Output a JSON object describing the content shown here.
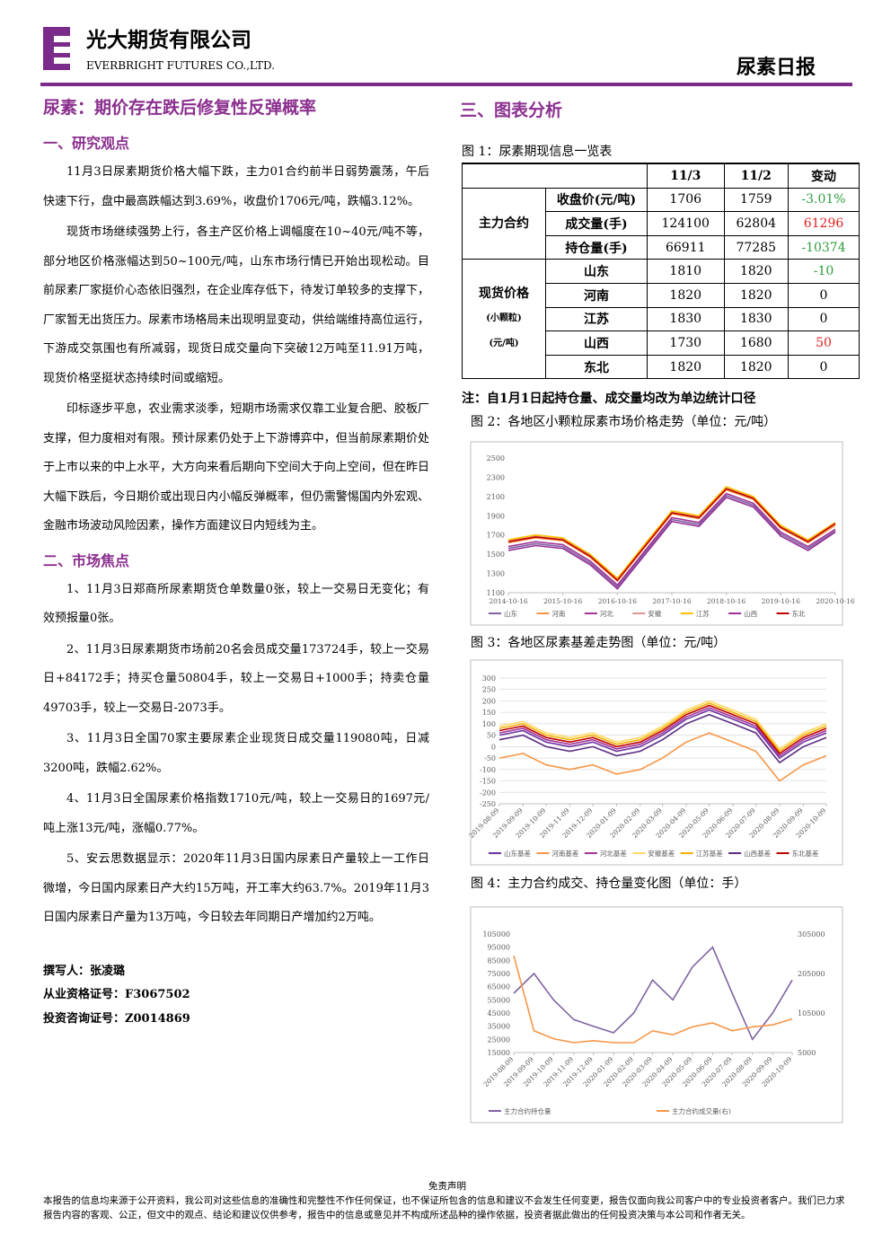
{
  "header": {
    "company_cn": "光大期货有限公司",
    "company_en": "EVERBRIGHT FUTURES CO.,LTD.",
    "report": "尿素日报"
  },
  "left": {
    "title": "尿素：期价存在跌后修复性反弹概率",
    "sections": [
      {
        "heading": "一、研究观点",
        "paragraphs": [
          "11月3日尿素期货价格大幅下跌，主力01合约前半日弱势震荡，午后快速下行，盘中最高跌幅达到3.69%，收盘价1706元/吨，跌幅3.12%。",
          "现货市场继续强势上行，各主产区价格上调幅度在10~40元/吨不等，部分地区价格涨幅达到50~100元/吨，山东市场行情已开始出现松动。目前尿素厂家挺价心态依旧强烈，在企业库存低下，待发订单较多的支撑下，厂家暂无出货压力。尿素市场格局未出现明显变动，供给端维持高位运行，下游成交氛围也有所减弱，现货日成交量向下突破12万吨至11.91万吨，现货价格坚挺状态持续时间或缩短。",
          "印标逐步平息，农业需求淡季，短期市场需求仅靠工业复合肥、胶板厂支撑，但力度相对有限。预计尿素仍处于上下游博弈中，但当前尿素期价处于上市以来的中上水平，大方向来看后期向下空间大于向上空间，但在昨日大幅下跌后，今日期价或出现日内小幅反弹概率，但仍需警惕国内外宏观、金融市场波动风险因素，操作方面建议日内短线为主。"
        ]
      },
      {
        "heading": "二、市场焦点",
        "paragraphs": [
          "1、11月3日郑商所尿素期货仓单数量0张，较上一交易日无变化；有效预报量0张。",
          "2、11月3日尿素期货市场前20名会员成交量173724手，较上一交易日+84172手；持买仓量50804手，较上一交易日+1000手；持卖仓量49703手，较上一交易日-2073手。",
          "3、11月3日全国70家主要尿素企业现货日成交量119080吨，日减3200吨，跌幅2.62%。",
          "4、11月3日全国尿素价格指数1710元/吨，较上一交易日的1697元/吨上涨13元/吨，涨幅0.77%。",
          "5、安云思数据显示：2020年11月3日国内尿素日产量较上一工作日微增，今日国内尿素日产大约15万吨，开工率大约63.7%。2019年11月3日国内尿素日产量为13万吨，今日较去年同期日产增加约2万吨。"
        ]
      }
    ],
    "authors": [
      "撰写人：张凌璐",
      "从业资格证号：F3067502",
      "投资咨询证号：Z0014869"
    ]
  },
  "right": {
    "heading": "三、图表分析",
    "table_caption": "图 1：尿素期现信息一览表",
    "table": {
      "columns": [
        "11/3",
        "11/2",
        "变动"
      ],
      "groups": [
        {
          "label": "主力合约",
          "rows": [
            {
              "label": "收盘价(元/吨)",
              "cells": [
                "1706",
                "1759",
                "-3.01%"
              ]
            },
            {
              "label": "成交量(手)",
              "cells": [
                "124100",
                "62804",
                "61296"
              ]
            },
            {
              "label": "持仓量(手)",
              "cells": [
                "66911",
                "77285",
                "-10374"
              ]
            }
          ]
        },
        {
          "label": "现货价格",
          "sublabels": [
            "(小颗粒)",
            "(元/吨)"
          ],
          "rows": [
            {
              "label": "山东",
              "cells": [
                "1810",
                "1820",
                "-10"
              ]
            },
            {
              "label": "河南",
              "cells": [
                "1820",
                "1820",
                "0"
              ]
            },
            {
              "label": "江苏",
              "cells": [
                "1830",
                "1830",
                "0"
              ]
            },
            {
              "label": "山西",
              "cells": [
                "1730",
                "1680",
                "50"
              ]
            },
            {
              "label": "东北",
              "cells": [
                "1820",
                "1820",
                "0"
              ]
            }
          ]
        }
      ]
    },
    "note": "注：自1月1日起持仓量、成交量均改为单边统计口径"
  },
  "chart_data": [
    {
      "type": "line",
      "title": "图 2：各地区小颗粒尿素市场价格走势（单位：元/吨）",
      "grid": false,
      "x": [
        "2014-10-16",
        "2015-04-16",
        "2015-10-16",
        "2016-04-16",
        "2016-10-16",
        "2017-04-16",
        "2017-10-16",
        "2018-04-16",
        "2018-10-16",
        "2019-04-16",
        "2019-10-16",
        "2020-04-16",
        "2020-10-16"
      ],
      "xlim": [
        "2014-10-16",
        "2020-10-16"
      ],
      "xticks": [
        "2014-10-16",
        "2015-10-16",
        "2016-10-16",
        "2017-10-16",
        "2018-10-16",
        "2019-10-16",
        "2020-10-16"
      ],
      "ylim": [
        1100,
        2500
      ],
      "yticks": [
        1100,
        1300,
        1500,
        1700,
        1900,
        2100,
        2300,
        2500
      ],
      "series": [
        {
          "name": "山东",
          "color": "#8064a2",
          "values": [
            1560,
            1610,
            1580,
            1410,
            1160,
            1510,
            1860,
            1810,
            2110,
            2010,
            1710,
            1560,
            1740
          ]
        },
        {
          "name": "河南",
          "color": "#f79646",
          "values": [
            1620,
            1670,
            1640,
            1470,
            1220,
            1570,
            1920,
            1870,
            2170,
            2070,
            1770,
            1620,
            1800
          ]
        },
        {
          "name": "河北",
          "color": "#a0359a",
          "values": [
            1580,
            1630,
            1600,
            1430,
            1180,
            1530,
            1880,
            1830,
            2130,
            2030,
            1730,
            1580,
            1760
          ]
        },
        {
          "name": "安徽",
          "color": "#d99694",
          "values": [
            1640,
            1690,
            1660,
            1490,
            1240,
            1590,
            1940,
            1890,
            2190,
            2090,
            1790,
            1640,
            1820
          ]
        },
        {
          "name": "江苏",
          "color": "#ffc000",
          "values": [
            1650,
            1700,
            1670,
            1500,
            1250,
            1600,
            1950,
            1900,
            2200,
            2100,
            1800,
            1650,
            1830
          ]
        },
        {
          "name": "山西",
          "color": "#993399",
          "values": [
            1540,
            1590,
            1560,
            1390,
            1140,
            1490,
            1840,
            1790,
            2090,
            1990,
            1690,
            1540,
            1730
          ]
        },
        {
          "name": "东北",
          "color": "#c00000",
          "values": [
            1630,
            1680,
            1650,
            1480,
            1230,
            1580,
            1930,
            1880,
            2180,
            2080,
            1780,
            1630,
            1820
          ]
        }
      ]
    },
    {
      "type": "line",
      "title": "图 3：各地区尿素基差走势图（单位：元/吨）",
      "grid": true,
      "x": [
        "2019-08-09",
        "2019-09-09",
        "2019-10-09",
        "2019-11-09",
        "2019-12-09",
        "2020-01-09",
        "2020-02-09",
        "2020-03-09",
        "2020-04-09",
        "2020-05-09",
        "2020-06-09",
        "2020-07-09",
        "2020-08-09",
        "2020-09-09",
        "2020-10-09"
      ],
      "xlim": [
        "2019-08-09",
        "2020-10-09"
      ],
      "xticks": [
        "2019-08-09",
        "2019-09-09",
        "2019-10-09",
        "2019-11-09",
        "2019-12-09",
        "2020-01-09",
        "2020-02-09",
        "2020-03-09",
        "2020-04-09",
        "2020-05-09",
        "2020-06-09",
        "2020-07-09",
        "2020-08-09",
        "2020-09-09",
        "2020-10-09"
      ],
      "ylim": [
        -250,
        300
      ],
      "yticks": [
        -250,
        -200,
        -150,
        -100,
        -50,
        0,
        50,
        100,
        150,
        200,
        250,
        300
      ],
      "series": [
        {
          "name": "山东基差",
          "color": "#7030a0",
          "values": [
            50,
            70,
            20,
            0,
            20,
            -20,
            0,
            50,
            120,
            160,
            120,
            80,
            -50,
            20,
            60
          ]
        },
        {
          "name": "河南基差",
          "color": "#f79646",
          "values": [
            -50,
            -30,
            -80,
            -100,
            -80,
            -120,
            -100,
            -50,
            20,
            60,
            20,
            -20,
            -150,
            -80,
            -40
          ]
        },
        {
          "name": "河北基差",
          "color": "#a0359a",
          "values": [
            60,
            80,
            30,
            10,
            30,
            -10,
            10,
            60,
            130,
            170,
            130,
            90,
            -40,
            30,
            70
          ]
        },
        {
          "name": "安徽基差",
          "color": "#ffd966",
          "values": [
            90,
            110,
            60,
            40,
            60,
            20,
            40,
            90,
            160,
            200,
            160,
            120,
            -10,
            60,
            100
          ]
        },
        {
          "name": "江苏基差",
          "color": "#f2b100",
          "values": [
            80,
            100,
            50,
            30,
            50,
            10,
            30,
            80,
            150,
            190,
            150,
            110,
            -20,
            50,
            90
          ]
        },
        {
          "name": "山西基差",
          "color": "#5b2c82",
          "values": [
            30,
            50,
            0,
            -20,
            0,
            -40,
            -20,
            30,
            100,
            140,
            100,
            60,
            -70,
            0,
            40
          ]
        },
        {
          "name": "东北基差",
          "color": "#c00000",
          "values": [
            70,
            90,
            40,
            20,
            40,
            0,
            20,
            70,
            140,
            180,
            140,
            100,
            -30,
            40,
            80
          ]
        }
      ]
    },
    {
      "type": "line",
      "title": "图 4：主力合约成交、持仓量变化图（单位：手）",
      "grid": false,
      "x": [
        "2019-08-09",
        "2019-09-09",
        "2019-10-09",
        "2019-11-09",
        "2019-12-09",
        "2020-01-09",
        "2020-02-09",
        "2020-03-09",
        "2020-04-09",
        "2020-05-09",
        "2020-06-09",
        "2020-07-09",
        "2020-08-09",
        "2020-09-09",
        "2020-10-09"
      ],
      "xlim": [
        "2019-08-09",
        "2020-10-09"
      ],
      "xticks": [
        "2019-08-09",
        "2019-09-09",
        "2019-10-09",
        "2019-11-09",
        "2019-12-09",
        "2020-01-09",
        "2020-02-09",
        "2020-03-09",
        "2020-04-09",
        "2020-05-09",
        "2020-06-09",
        "2020-07-09",
        "2020-08-09",
        "2020-09-09",
        "2020-10-09"
      ],
      "ylim": [
        15000,
        105000
      ],
      "yticks": [
        15000,
        25000,
        35000,
        45000,
        55000,
        65000,
        75000,
        85000,
        95000,
        105000
      ],
      "y2lim": [
        5000,
        305000
      ],
      "y2ticks": [
        5000,
        105000,
        205000,
        305000
      ],
      "series": [
        {
          "name": "主力合约持仓量",
          "color": "#8064a2",
          "values": [
            60000,
            75000,
            55000,
            40000,
            35000,
            30000,
            45000,
            70000,
            55000,
            80000,
            95000,
            60000,
            25000,
            45000,
            70000
          ]
        },
        {
          "name": "主力合约成交量(右)",
          "color": "#f79646",
          "axis": "y2",
          "values": [
            250000,
            60000,
            40000,
            30000,
            35000,
            30000,
            30000,
            60000,
            50000,
            70000,
            80000,
            60000,
            70000,
            75000,
            90000
          ]
        }
      ]
    }
  ],
  "footer": {
    "title": "免责声明",
    "text": "本报告的信息均来源于公开资料，我公司对这些信息的准确性和完整性不作任何保证，也不保证所包含的信息和建议不会发生任何变更，报告仅面向我公司客户中的专业投资者客户。我们已力求报告内容的客观、公正，但文中的观点、结论和建议仅供参考，报告中的信息或意见并不构成所述品种的操作依据，投资者据此做出的任何投资决策与本公司和作者无关。"
  }
}
